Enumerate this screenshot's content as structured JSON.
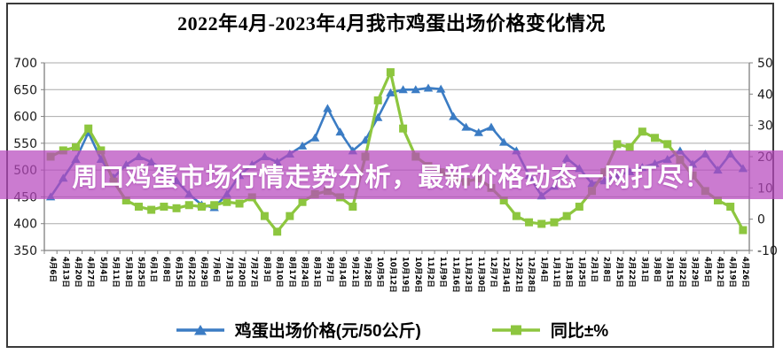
{
  "banner": {
    "text": "周口鸡蛋市场行情走势分析，最新价格动态一网打尽！",
    "bg_color": "rgba(183,72,190,0.72)",
    "text_color": "#ffffff"
  },
  "legend": [
    {
      "label": "鸡蛋出场价格(元/50公斤)",
      "marker": "triangle",
      "color": "#3b7cc4"
    },
    {
      "label": "同比±%",
      "marker": "square",
      "color": "#8dc63f"
    }
  ],
  "chart_data": {
    "type": "line",
    "title": "2022年4月-2023年4月我市鸡蛋出场价格变化情况",
    "grid": true,
    "legend_position": "bottom",
    "categories": [
      "4月6日",
      "4月13日",
      "4月20日",
      "4月27日",
      "5月4日",
      "5月11日",
      "5月18日",
      "5月25日",
      "6月1日",
      "6月8日",
      "6月15日",
      "6月22日",
      "6月29日",
      "7月6日",
      "7月13日",
      "7月20日",
      "7月27日",
      "8月3日",
      "8月10日",
      "8月17日",
      "8月24日",
      "8月31日",
      "9月7日",
      "9月14日",
      "9月21日",
      "9月28日",
      "10月5日",
      "10月12日",
      "10月19日",
      "10月26日",
      "11月2日",
      "11月9日",
      "11月16日",
      "11月23日",
      "11月30日",
      "12月7日",
      "12月14日",
      "12月21日",
      "12月28日",
      "1月4日",
      "1月11日",
      "1月18日",
      "1月25日",
      "2月1日",
      "2月8日",
      "2月15日",
      "2月22日",
      "3月1日",
      "3月8日",
      "3月15日",
      "3月22日",
      "3月29日",
      "4月5日",
      "4月12日",
      "4月19日",
      "4月26日"
    ],
    "series": [
      {
        "name": "鸡蛋出场价格(元/50公斤)",
        "axis": "left",
        "color": "#3b7cc4",
        "marker": "triangle",
        "values": [
          450,
          485,
          520,
          570,
          520,
          486,
          510,
          525,
          515,
          500,
          480,
          455,
          435,
          430,
          455,
          490,
          510,
          525,
          515,
          530,
          545,
          560,
          615,
          571,
          536,
          556,
          598,
          644,
          650,
          650,
          653,
          651,
          600,
          580,
          570,
          580,
          552,
          536,
          490,
          452,
          470,
          522,
          503,
          475,
          480,
          490,
          497,
          505,
          512,
          520,
          536,
          511,
          530,
          500,
          530,
          503
        ]
      },
      {
        "name": "同比±%",
        "axis": "right",
        "color": "#8dc63f",
        "marker": "square",
        "values": [
          20,
          22,
          23,
          29,
          22,
          12,
          6,
          4,
          3,
          4,
          3.5,
          4.5,
          4,
          4.5,
          5.5,
          5,
          7,
          1,
          -4,
          1,
          5.5,
          8,
          9,
          7,
          4,
          20,
          38,
          47,
          29,
          20,
          17,
          15,
          13,
          12,
          13,
          10,
          6,
          1,
          -1,
          -1.5,
          -1,
          1,
          4,
          9,
          15,
          24,
          23,
          28,
          26,
          24,
          19,
          14,
          9,
          6,
          4,
          -3.5
        ]
      }
    ],
    "left_axis": {
      "min": 350,
      "max": 700,
      "step": 50,
      "tick_labels": [
        "350",
        "400",
        "450",
        "500",
        "550",
        "600",
        "650",
        "700"
      ]
    },
    "right_axis": {
      "min": -10,
      "max": 50,
      "step": 10,
      "tick_labels": [
        "-10",
        "0",
        "10",
        "20",
        "30",
        "40",
        "50"
      ]
    }
  }
}
